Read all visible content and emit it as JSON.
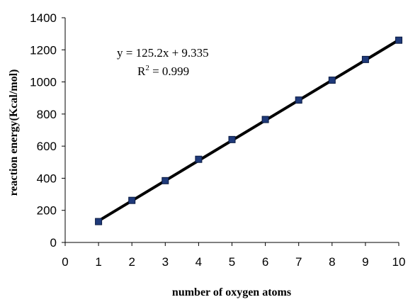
{
  "chart_data": {
    "type": "scatter",
    "xlabel": "number of oxygen atoms",
    "ylabel": "reaction energy(Kcal/mol)",
    "xlim": [
      0,
      10
    ],
    "ylim": [
      0,
      1400
    ],
    "x_ticks": [
      "0",
      "1",
      "2",
      "3",
      "4",
      "5",
      "6",
      "7",
      "8",
      "9",
      "10"
    ],
    "y_ticks": [
      "0",
      "200",
      "400",
      "600",
      "800",
      "1000",
      "1200",
      "1400"
    ],
    "grid": false,
    "series": [
      {
        "x": [
          1,
          2,
          3,
          4,
          5,
          6,
          7,
          8,
          9,
          10
        ],
        "y": [
          130,
          262,
          385,
          518,
          641,
          766,
          887,
          1011,
          1140,
          1260
        ],
        "marker": "square",
        "marker_color": "#1f3a7a"
      }
    ],
    "trendline": {
      "type": "linear",
      "slope": 125.2,
      "intercept": 9.335,
      "x_range": [
        1,
        10
      ],
      "color": "#000000"
    },
    "annotations": {
      "equation": "y = 125.2x + 9.335",
      "r_squared_prefix": "R",
      "r_squared_sup": "2",
      "r_squared_value": " = 0.999"
    }
  }
}
